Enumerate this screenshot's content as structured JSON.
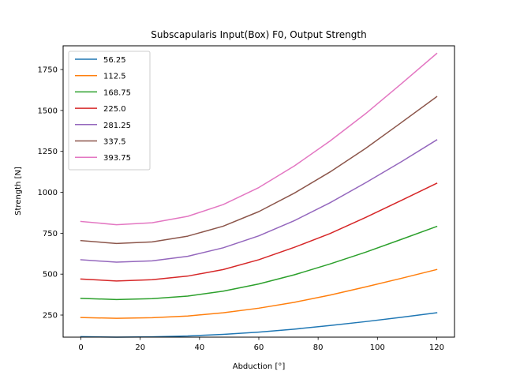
{
  "chart_data": {
    "type": "line",
    "title": "Subscapularis Input(Box) F0, Output Strength",
    "xlabel": "Abduction [°]",
    "ylabel": "Strength [N]",
    "xlim": [
      -6,
      126
    ],
    "ylim": [
      115,
      1895
    ],
    "xticks": [
      0,
      20,
      40,
      60,
      80,
      100,
      120
    ],
    "yticks": [
      250,
      500,
      750,
      1000,
      1250,
      1500,
      1750
    ],
    "grid": false,
    "legend_position": "top-left",
    "x": [
      0,
      12,
      24,
      36,
      48,
      60,
      72,
      84,
      96,
      108,
      120
    ],
    "series": [
      {
        "name": "56.25",
        "color": "#1f77b4",
        "values": [
          118,
          115,
          117,
          122,
          132,
          146,
          164,
          186,
          210,
          236,
          264
        ]
      },
      {
        "name": "112.5",
        "color": "#ff7f0e",
        "values": [
          235,
          230,
          234,
          244,
          264,
          292,
          328,
          372,
          422,
          474,
          528
        ]
      },
      {
        "name": "168.75",
        "color": "#2ca02c",
        "values": [
          352,
          345,
          350,
          366,
          396,
          440,
          496,
          562,
          634,
          712,
          791
        ]
      },
      {
        "name": "225.0",
        "color": "#d62728",
        "values": [
          470,
          458,
          466,
          488,
          528,
          588,
          664,
          748,
          846,
          950,
          1055
        ]
      },
      {
        "name": "281.25",
        "color": "#9467bd",
        "values": [
          588,
          573,
          581,
          609,
          661,
          734,
          827,
          936,
          1058,
          1186,
          1320
        ]
      },
      {
        "name": "337.5",
        "color": "#8c564b",
        "values": [
          705,
          687,
          697,
          732,
          793,
          882,
          995,
          1124,
          1268,
          1425,
          1584
        ]
      },
      {
        "name": "393.75",
        "color": "#e377c2",
        "values": [
          822,
          802,
          814,
          853,
          925,
          1029,
          1161,
          1313,
          1480,
          1662,
          1848
        ]
      }
    ]
  }
}
